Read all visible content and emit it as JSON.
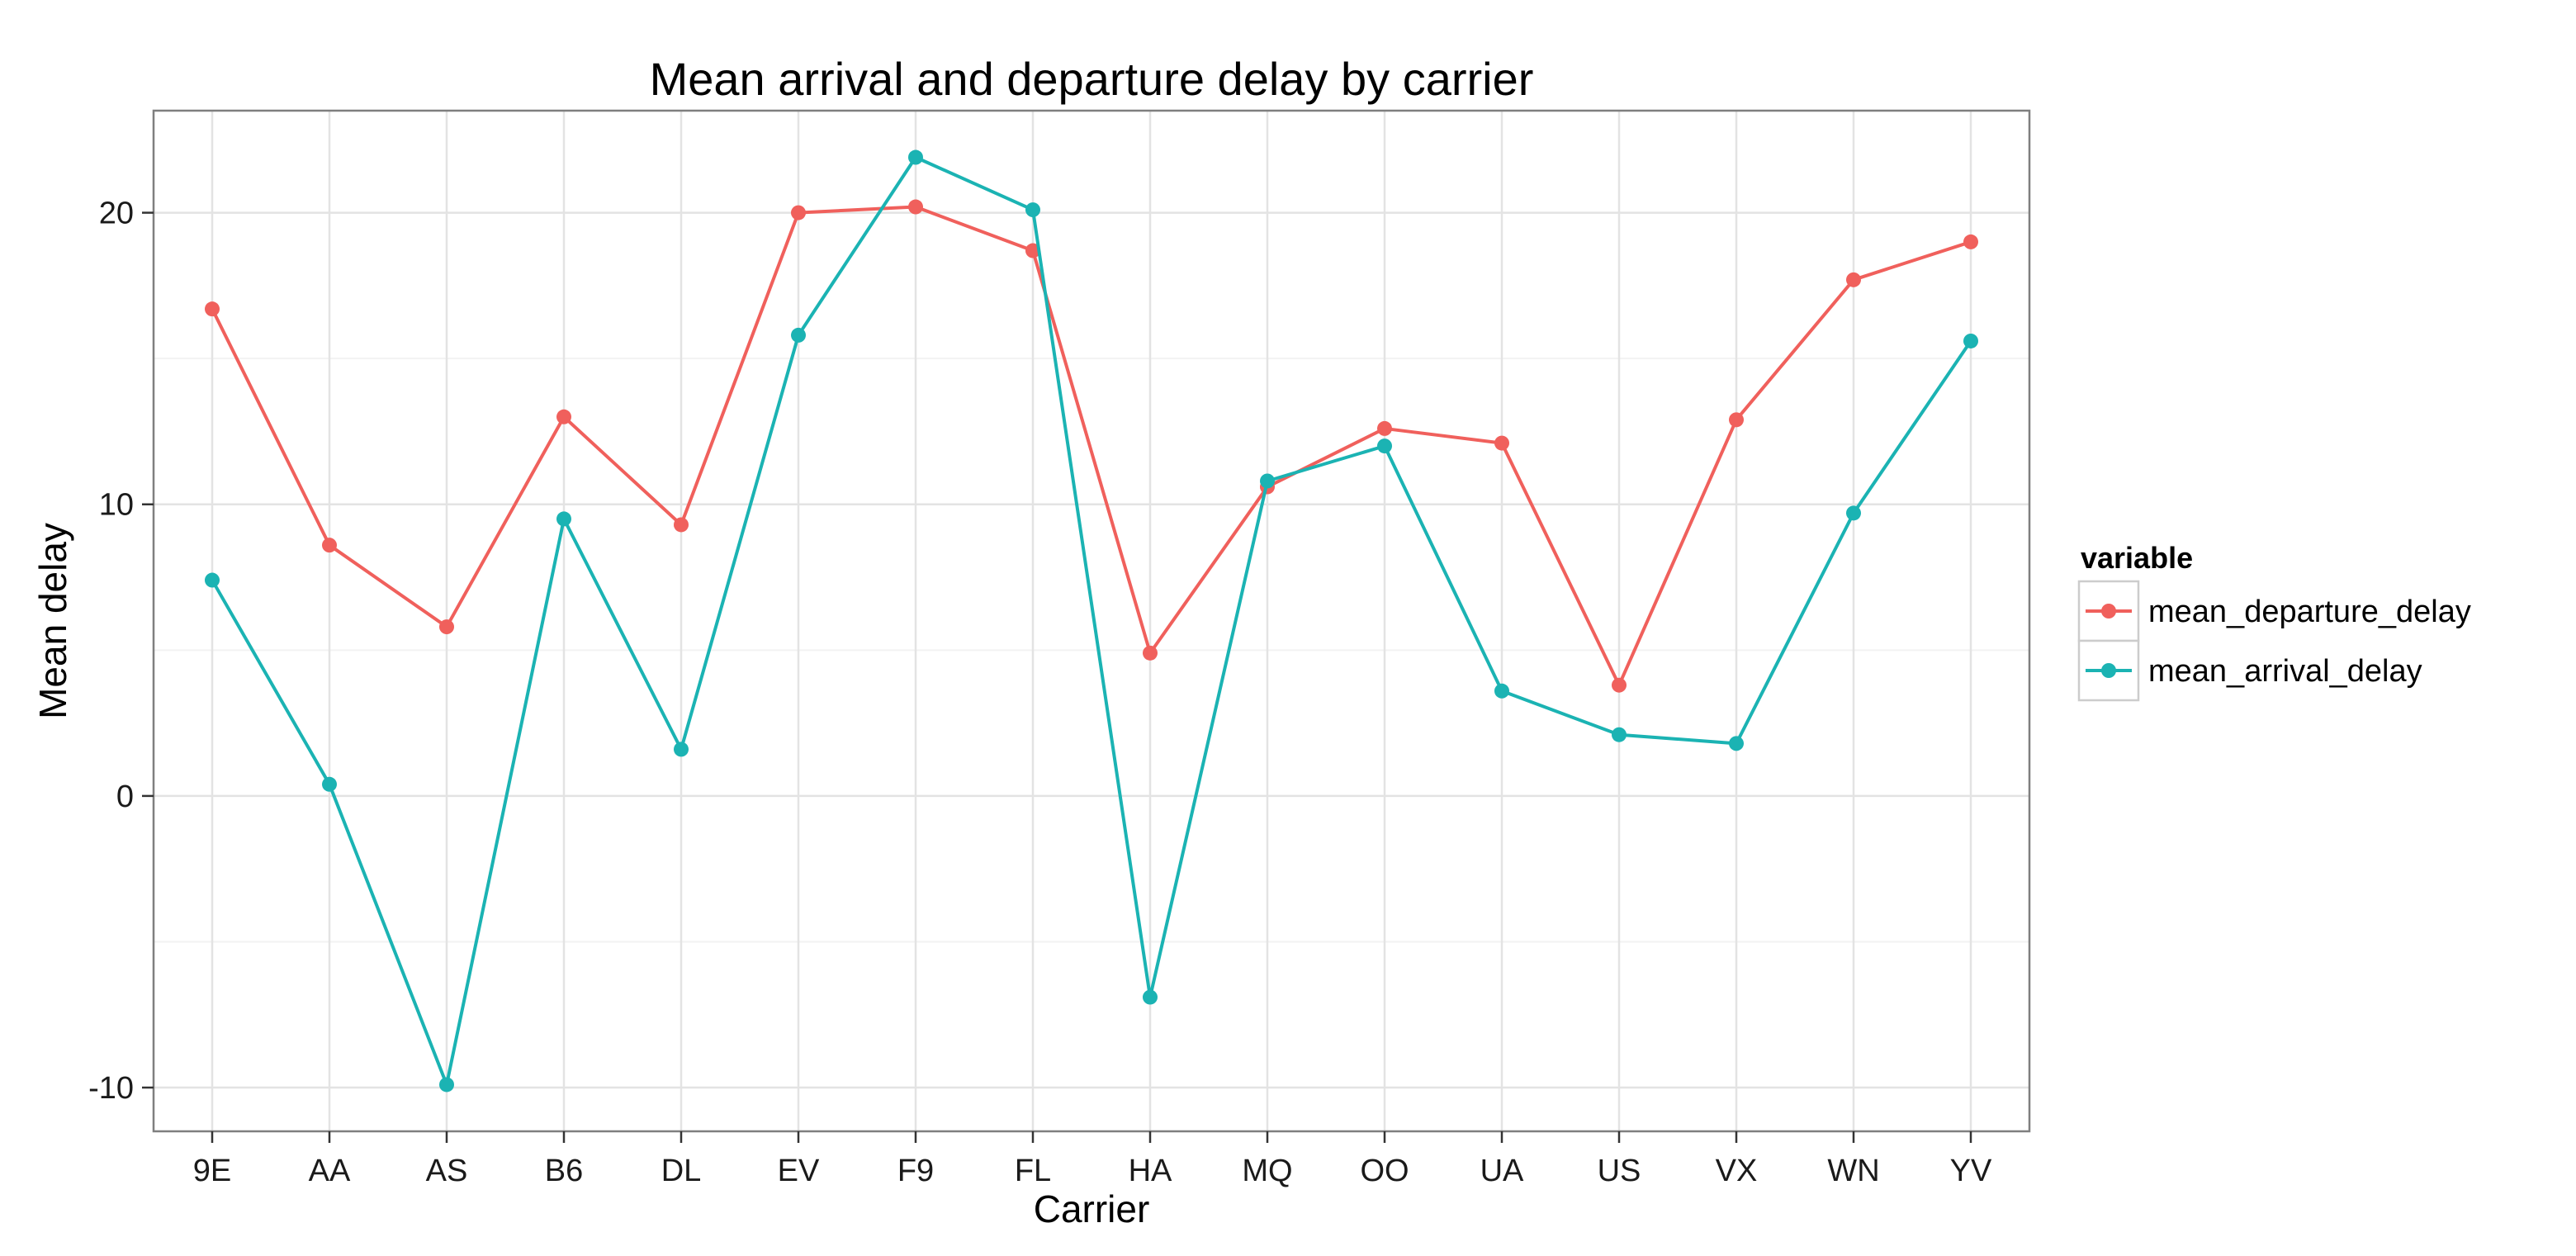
{
  "chart_data": {
    "type": "line",
    "title": "Mean arrival and departure delay by carrier",
    "xlabel": "Carrier",
    "ylabel": "Mean delay",
    "categories": [
      "9E",
      "AA",
      "AS",
      "B6",
      "DL",
      "EV",
      "F9",
      "FL",
      "HA",
      "MQ",
      "OO",
      "UA",
      "US",
      "VX",
      "WN",
      "YV"
    ],
    "yticks": [
      -10,
      0,
      10,
      20
    ],
    "ylim": [
      -11.5,
      23.5
    ],
    "grid": true,
    "legend": {
      "title": "variable",
      "placement": "right"
    },
    "series": [
      {
        "name": "mean_departure_delay",
        "color": "#f0605c",
        "values": [
          16.7,
          8.6,
          5.8,
          13.0,
          9.3,
          20.0,
          20.2,
          18.7,
          4.9,
          10.6,
          12.6,
          12.1,
          3.8,
          12.9,
          17.7,
          19.0
        ]
      },
      {
        "name": "mean_arrival_delay",
        "color": "#1bb3b3",
        "values": [
          7.4,
          0.4,
          -9.9,
          9.5,
          1.6,
          15.8,
          21.9,
          20.1,
          -6.9,
          10.8,
          12.0,
          3.6,
          2.1,
          1.8,
          9.7,
          15.6
        ]
      }
    ]
  }
}
